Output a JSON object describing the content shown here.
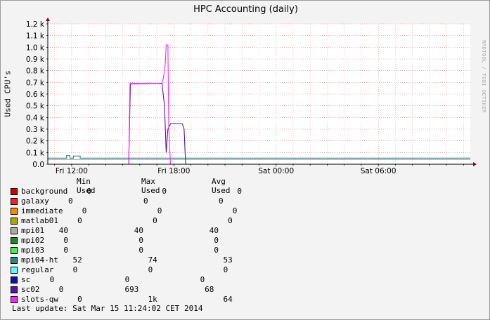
{
  "chart_data": {
    "type": "area",
    "title": "HPC Accounting (daily)",
    "ylabel": "Used CPU's",
    "xlabel": "",
    "yticks": [
      "0.0",
      "0.1 k",
      "0.2 k",
      "0.3 k",
      "0.4 k",
      "0.5 k",
      "0.6 k",
      "0.7 k",
      "0.8 k",
      "0.9 k",
      "1.0 k",
      "1.1 k",
      "1.2 k"
    ],
    "ytick_values": [
      0,
      100,
      200,
      300,
      400,
      500,
      600,
      700,
      800,
      900,
      1000,
      1100,
      1200
    ],
    "ylim": [
      0,
      1200
    ],
    "x_range_hours": [
      10.6,
      35.4
    ],
    "xticks": [
      {
        "label": "Fri 12:00",
        "hour": 12
      },
      {
        "label": "Fri 18:00",
        "hour": 18
      },
      {
        "label": "Sat 00:00",
        "hour": 24
      },
      {
        "label": "Sat 06:00",
        "hour": 30
      }
    ],
    "grid": true,
    "series": [
      {
        "name": "background",
        "color": "#cc0000",
        "points": [
          [
            10.6,
            0
          ],
          [
            35.4,
            0
          ]
        ]
      },
      {
        "name": "galaxy",
        "color": "#ee2222",
        "points": [
          [
            10.6,
            0
          ],
          [
            35.4,
            0
          ]
        ]
      },
      {
        "name": "immediate",
        "color": "#ff8800",
        "points": [
          [
            10.6,
            0
          ],
          [
            35.4,
            0
          ]
        ]
      },
      {
        "name": "matlab01",
        "color": "#aaaa00",
        "points": [
          [
            10.6,
            0
          ],
          [
            35.4,
            0
          ]
        ]
      },
      {
        "name": "mpi01",
        "color": "#aaaaaa",
        "points": [
          [
            10.6,
            40
          ],
          [
            35.4,
            40
          ]
        ]
      },
      {
        "name": "mpi02",
        "color": "#228822",
        "points": [
          [
            10.6,
            0
          ],
          [
            35.4,
            0
          ]
        ]
      },
      {
        "name": "mpi03",
        "color": "#44ee44",
        "points": [
          [
            10.6,
            0
          ],
          [
            35.4,
            0
          ]
        ]
      },
      {
        "name": "mpi04-ht",
        "color": "#228888",
        "points": [
          [
            10.6,
            52
          ],
          [
            11.7,
            52
          ],
          [
            11.7,
            74
          ],
          [
            11.9,
            74
          ],
          [
            11.9,
            52
          ],
          [
            12.1,
            52
          ],
          [
            12.1,
            70
          ],
          [
            12.5,
            70
          ],
          [
            12.5,
            52
          ],
          [
            35.4,
            52
          ]
        ]
      },
      {
        "name": "regular",
        "color": "#55ffff",
        "points": [
          [
            10.6,
            0
          ],
          [
            35.4,
            0
          ]
        ]
      },
      {
        "name": "sc",
        "color": "#1111aa",
        "points": [
          [
            10.6,
            0
          ],
          [
            35.4,
            0
          ]
        ]
      },
      {
        "name": "sc02",
        "color": "#5511aa",
        "points": [
          [
            10.6,
            0
          ],
          [
            15.35,
            0
          ],
          [
            15.45,
            690
          ],
          [
            17.1,
            690
          ],
          [
            17.3,
            693
          ],
          [
            17.45,
            500
          ],
          [
            17.55,
            100
          ],
          [
            17.65,
            300
          ],
          [
            17.8,
            345
          ],
          [
            18.5,
            345
          ],
          [
            18.6,
            300
          ],
          [
            18.65,
            120
          ],
          [
            18.7,
            0
          ],
          [
            35.4,
            0
          ]
        ]
      },
      {
        "name": "slots-qw",
        "color": "#ff22ff",
        "points": [
          [
            10.6,
            0
          ],
          [
            15.35,
            0
          ],
          [
            15.42,
            685
          ],
          [
            17.3,
            688
          ],
          [
            17.4,
            750
          ],
          [
            17.5,
            870
          ],
          [
            17.55,
            1020
          ],
          [
            17.65,
            1020
          ],
          [
            17.7,
            300
          ],
          [
            17.8,
            0
          ],
          [
            35.4,
            0
          ]
        ]
      }
    ]
  },
  "legend": {
    "header": {
      "min": "Min Used",
      "max": "Max Used",
      "avg": "Avg Used"
    },
    "rows": [
      {
        "name": "background",
        "color": "#cc0000",
        "min": "0",
        "max": "0",
        "avg": "0"
      },
      {
        "name": "galaxy",
        "color": "#ee2222",
        "min": "0",
        "max": "0",
        "avg": "0"
      },
      {
        "name": "immediate",
        "color": "#ff8800",
        "min": "0",
        "max": "0",
        "avg": "0"
      },
      {
        "name": "matlab01",
        "color": "#aaaa00",
        "min": "0",
        "max": "0",
        "avg": "0"
      },
      {
        "name": "mpi01",
        "color": "#aaaaaa",
        "min": "40",
        "max": "40",
        "avg": "40"
      },
      {
        "name": "mpi02",
        "color": "#228822",
        "min": "0",
        "max": "0",
        "avg": "0"
      },
      {
        "name": "mpi03",
        "color": "#44ee44",
        "min": "0",
        "max": "0",
        "avg": "0"
      },
      {
        "name": "mpi04-ht",
        "color": "#228888",
        "min": "52",
        "max": "74",
        "avg": "53"
      },
      {
        "name": "regular",
        "color": "#55ffff",
        "min": "0",
        "max": "0",
        "avg": "0"
      },
      {
        "name": "sc",
        "color": "#1111aa",
        "min": "0",
        "max": "0",
        "avg": "0"
      },
      {
        "name": "sc02",
        "color": "#5511aa",
        "min": "0",
        "max": "693",
        "avg": "68"
      },
      {
        "name": "slots-qw",
        "color": "#ff22ff",
        "min": "0",
        "max": "1k",
        "avg": "64"
      }
    ]
  },
  "last_update": "Last update: Sat Mar 15 11:24:02 CET 2014",
  "watermark": "RRDTOOL / TOBI OETIKER",
  "colors": {
    "grid_minor": "#ff9999",
    "grid_major": "#ff7777",
    "axis": "#000000",
    "arrow": "#990000",
    "background": "#f3f3f3",
    "plot_bg": "#ffffff"
  }
}
